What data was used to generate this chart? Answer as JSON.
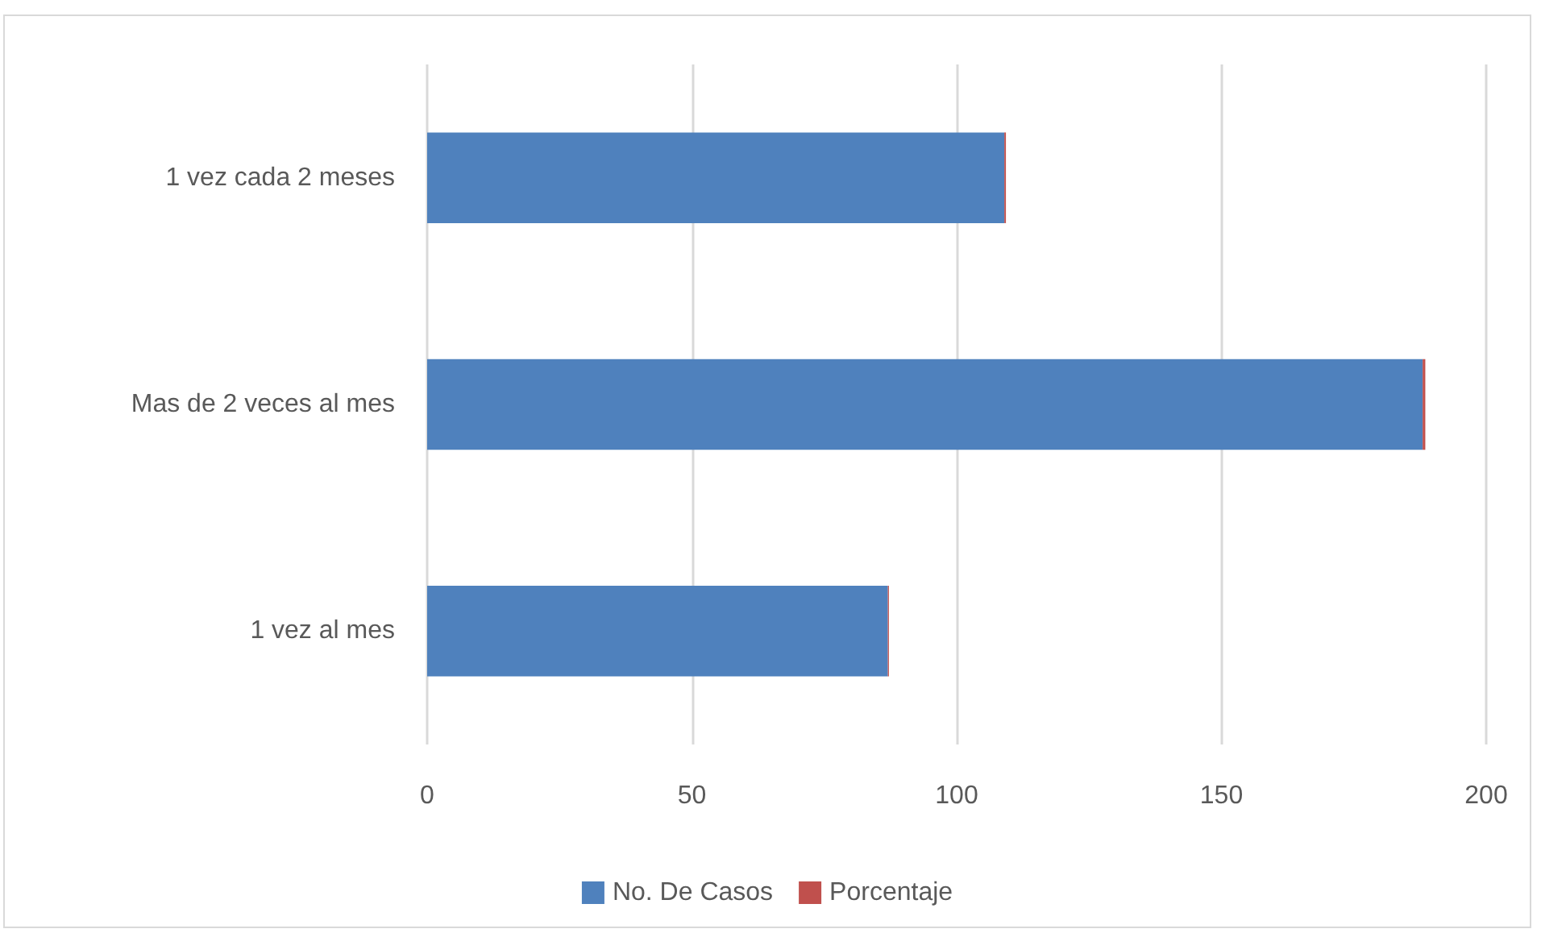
{
  "chart_data": {
    "type": "bar",
    "orientation": "horizontal",
    "stacked": true,
    "categories": [
      "1 vez cada 2 meses",
      "Mas de 2 veces al mes",
      "1 vez al mes"
    ],
    "series": [
      {
        "name": "No. De Casos",
        "color": "#4f81bd",
        "values": [
          109,
          188,
          87
        ]
      },
      {
        "name": "Porcentaje",
        "color": "#c0504d",
        "values": [
          0.3,
          0.5,
          0.2
        ]
      }
    ],
    "xlim": [
      0,
      200
    ],
    "xticks": [
      0,
      50,
      100,
      150,
      200
    ],
    "grid": "x",
    "legend": "bottom"
  }
}
